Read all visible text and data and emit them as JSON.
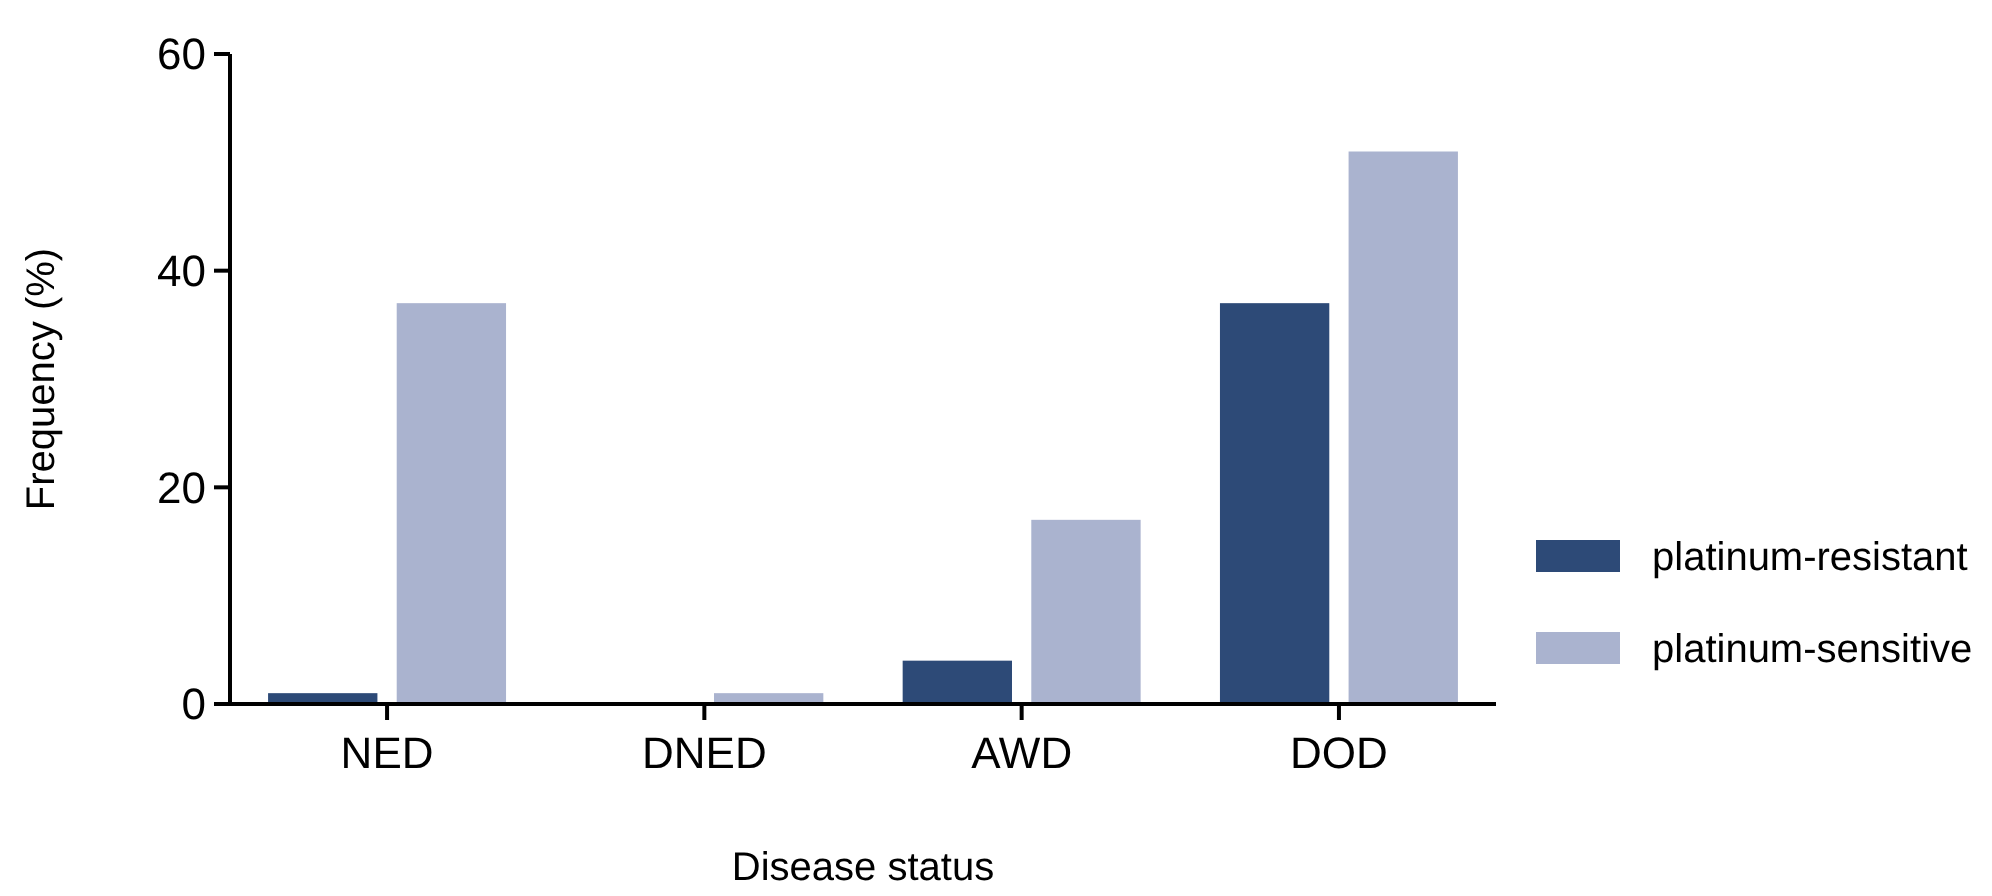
{
  "chart_data": {
    "type": "bar",
    "xlabel": "Disease status",
    "ylabel": "Frequency (%)",
    "categories": [
      "NED",
      "DNED",
      "AWD",
      "DOD"
    ],
    "series": [
      {
        "name": "platinum-resistant",
        "color": "#2d4a77",
        "values": [
          1,
          0,
          4,
          37
        ]
      },
      {
        "name": "platinum-sensitive",
        "color": "#aab3cf",
        "values": [
          37,
          1,
          17,
          51
        ]
      }
    ],
    "ylim": [
      0,
      60
    ],
    "yticks": [
      0,
      20,
      40,
      60
    ],
    "grid": false,
    "legend": "right"
  }
}
